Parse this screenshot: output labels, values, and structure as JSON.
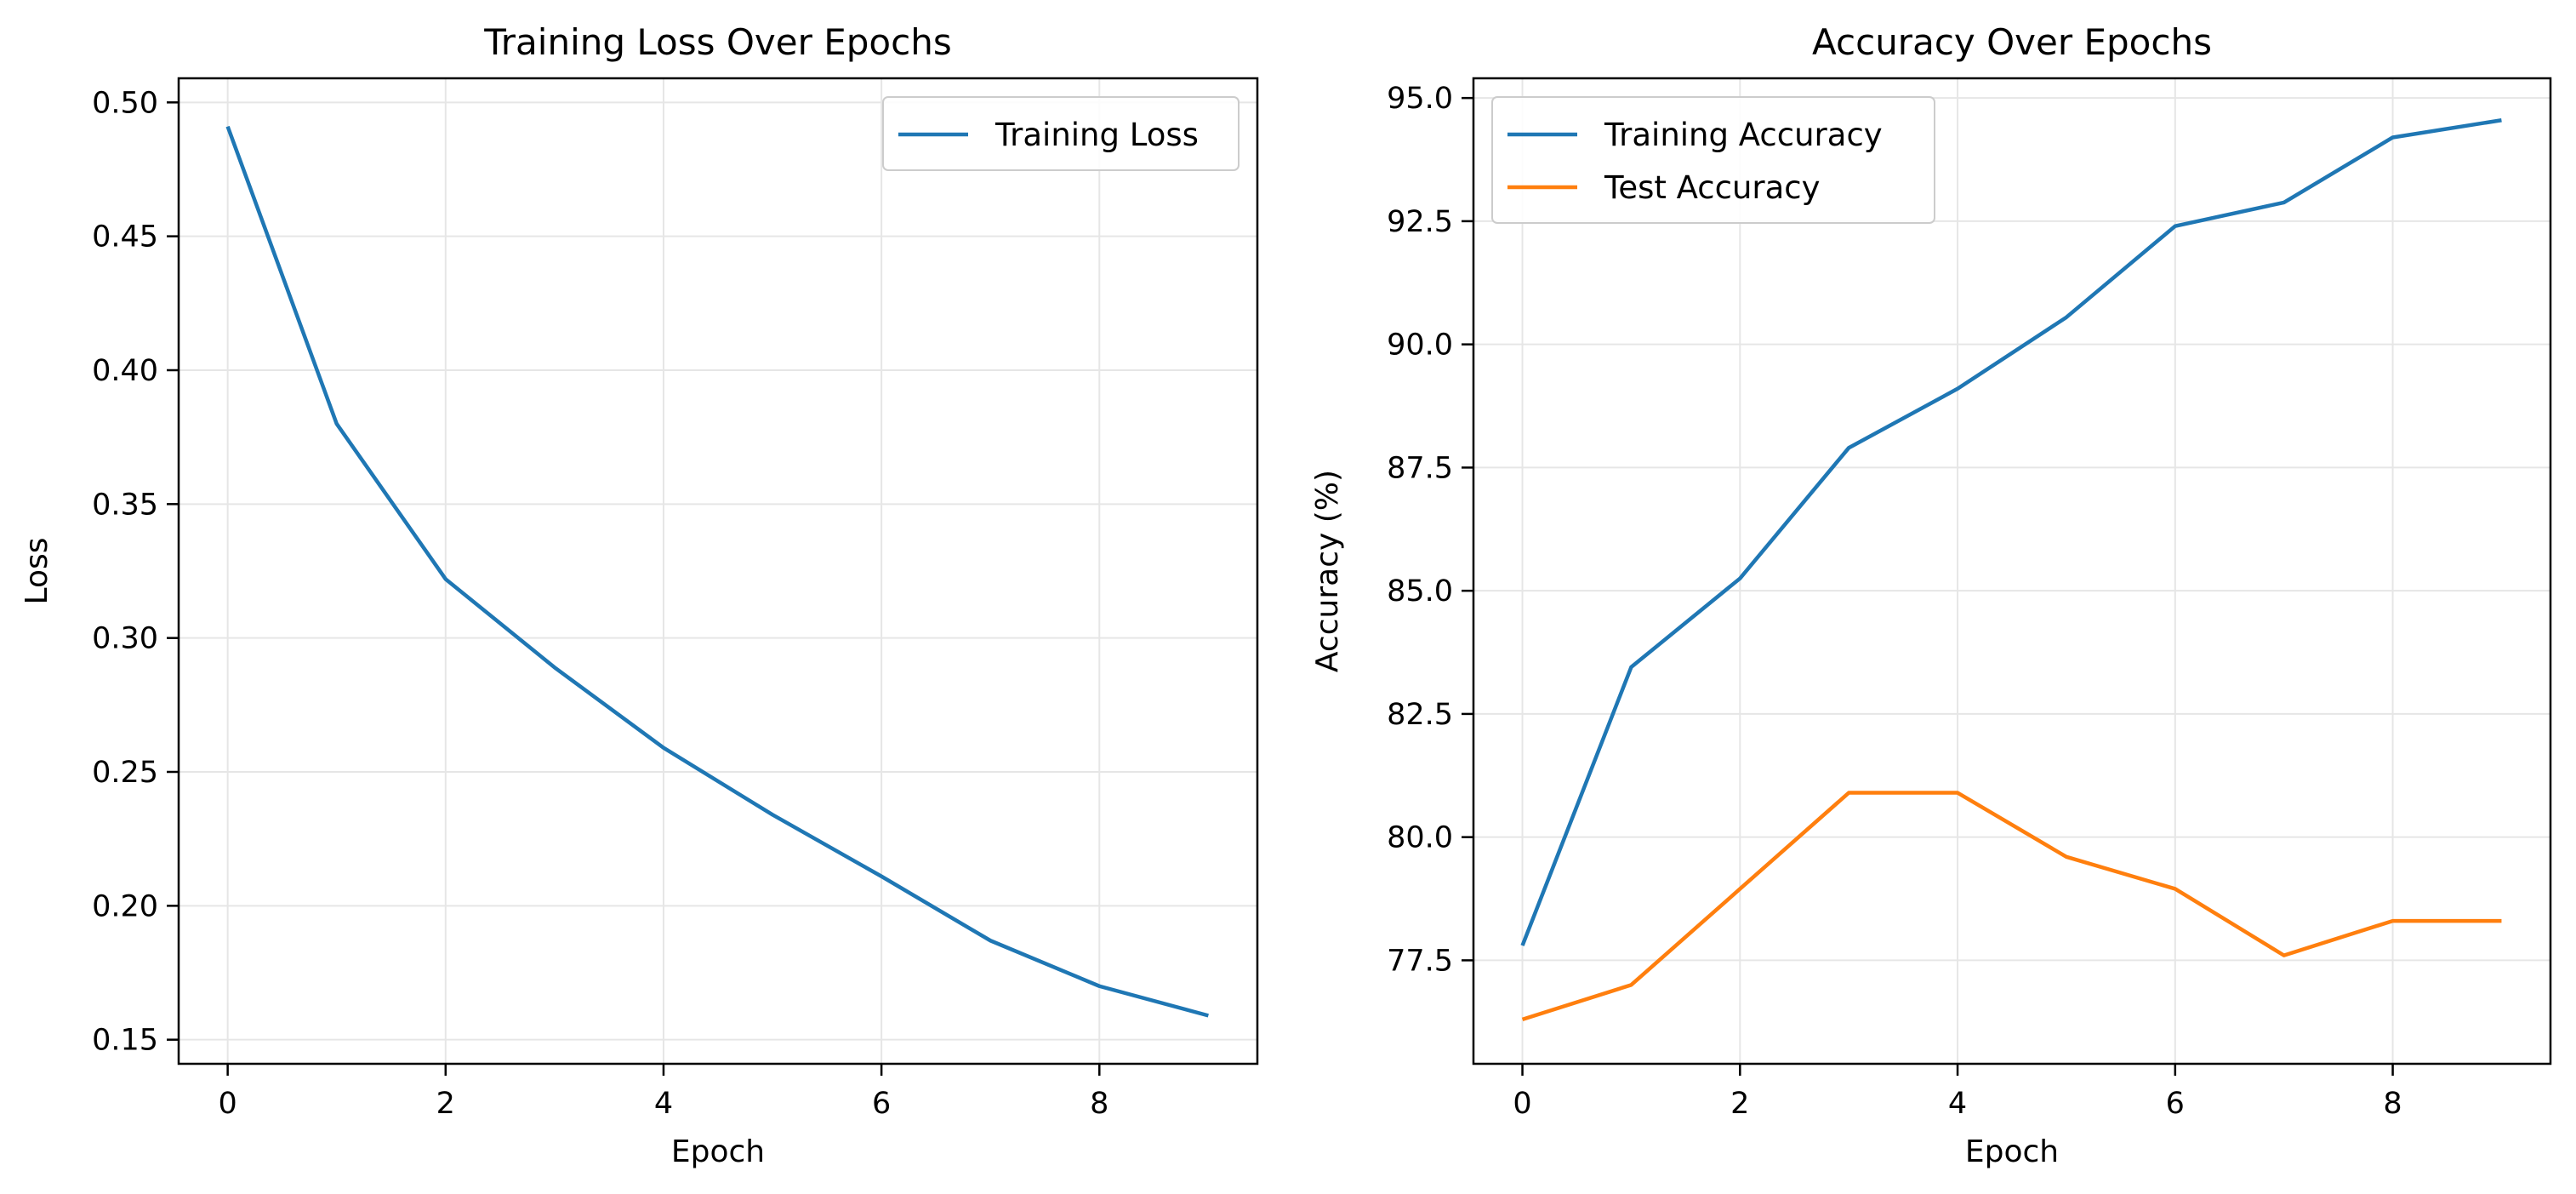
{
  "chart_data": [
    {
      "type": "line",
      "title": "Training Loss Over Epochs",
      "xlabel": "Epoch",
      "ylabel": "Loss",
      "x": [
        0,
        1,
        2,
        3,
        4,
        5,
        6,
        7,
        8,
        9
      ],
      "xlim": [
        -0.45,
        9.45
      ],
      "ylim": [
        0.141,
        0.509
      ],
      "xticks": [
        0,
        2,
        4,
        6,
        8
      ],
      "yticks": [
        0.15,
        0.2,
        0.25,
        0.3,
        0.35,
        0.4,
        0.45,
        0.5
      ],
      "ytick_labels": [
        "0.15",
        "0.20",
        "0.25",
        "0.30",
        "0.35",
        "0.40",
        "0.45",
        "0.50"
      ],
      "grid": true,
      "legend": "upper right",
      "series": [
        {
          "name": "Training Loss",
          "color": "#1f77b4",
          "values": [
            0.491,
            0.38,
            0.322,
            0.289,
            0.259,
            0.234,
            0.211,
            0.187,
            0.17,
            0.159
          ]
        }
      ]
    },
    {
      "type": "line",
      "title": "Accuracy Over Epochs",
      "xlabel": "Epoch",
      "ylabel": "Accuracy (%)",
      "x": [
        0,
        1,
        2,
        3,
        4,
        5,
        6,
        7,
        8,
        9
      ],
      "xlim": [
        -0.45,
        9.45
      ],
      "ylim": [
        75.4,
        95.4
      ],
      "xticks": [
        0,
        2,
        4,
        6,
        8
      ],
      "yticks": [
        77.5,
        80.0,
        82.5,
        85.0,
        87.5,
        90.0,
        92.5,
        95.0
      ],
      "ytick_labels": [
        "77.5",
        "80.0",
        "82.5",
        "85.0",
        "87.5",
        "90.0",
        "92.5",
        "95.0"
      ],
      "grid": true,
      "legend": "upper left",
      "series": [
        {
          "name": "Training Accuracy",
          "color": "#1f77b4",
          "values": [
            77.8,
            83.45,
            85.25,
            87.9,
            89.1,
            90.55,
            92.4,
            92.88,
            94.2,
            94.55
          ]
        },
        {
          "name": "Test Accuracy",
          "color": "#ff7f0e",
          "values": [
            76.3,
            77.0,
            78.95,
            80.9,
            80.9,
            79.6,
            78.95,
            77.6,
            78.3,
            78.3
          ]
        }
      ]
    }
  ]
}
